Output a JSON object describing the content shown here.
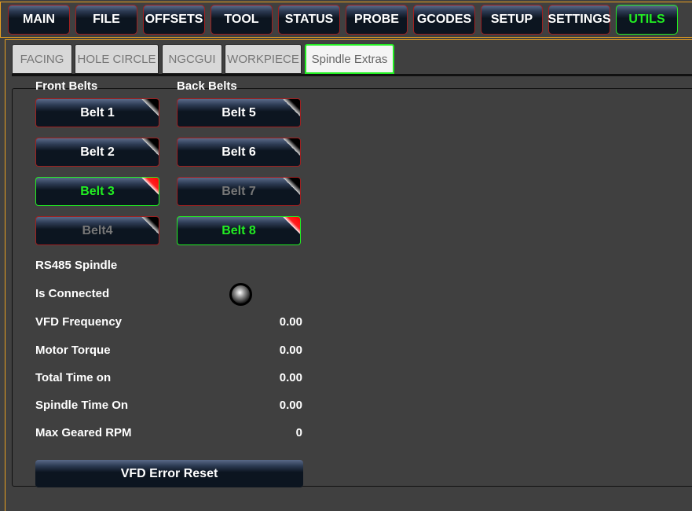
{
  "nav": {
    "items": [
      "MAIN",
      "FILE",
      "OFFSETS",
      "TOOL",
      "STATUS",
      "PROBE",
      "GCODES",
      "SETUP",
      "SETTINGS",
      "UTILS"
    ],
    "active": "UTILS"
  },
  "tabs": {
    "items": [
      "FACING",
      "HOLE CIRCLE",
      "NGCGUI",
      "WORKPIECE",
      "Spindle Extras"
    ],
    "active": "Spindle Extras"
  },
  "belts": {
    "front_label": "Front Belts",
    "back_label": "Back Belts",
    "front": [
      {
        "label": "Belt 1",
        "state": "off"
      },
      {
        "label": "Belt 2",
        "state": "off"
      },
      {
        "label": "Belt 3",
        "state": "on"
      },
      {
        "label": "Belt4",
        "state": "disabled"
      }
    ],
    "back": [
      {
        "label": "Belt 5",
        "state": "off"
      },
      {
        "label": "Belt 6",
        "state": "off"
      },
      {
        "label": "Belt 7",
        "state": "disabled"
      },
      {
        "label": "Belt 8",
        "state": "on"
      }
    ]
  },
  "spindle": {
    "title": "RS485 Spindle",
    "connected_label": "Is Connected",
    "connected": false,
    "rows": [
      {
        "label": "VFD Frequency",
        "value": "0.00"
      },
      {
        "label": "Motor Torque",
        "value": "0.00"
      },
      {
        "label": "Total Time on",
        "value": "0.00"
      },
      {
        "label": "Spindle Time On",
        "value": "0.00"
      },
      {
        "label": "Max Geared RPM",
        "value": "0"
      }
    ],
    "reset_label": "VFD Error Reset"
  },
  "colors": {
    "active": "#22ee22",
    "accent": "#e8a020",
    "indicator_on": "#ff0000"
  }
}
